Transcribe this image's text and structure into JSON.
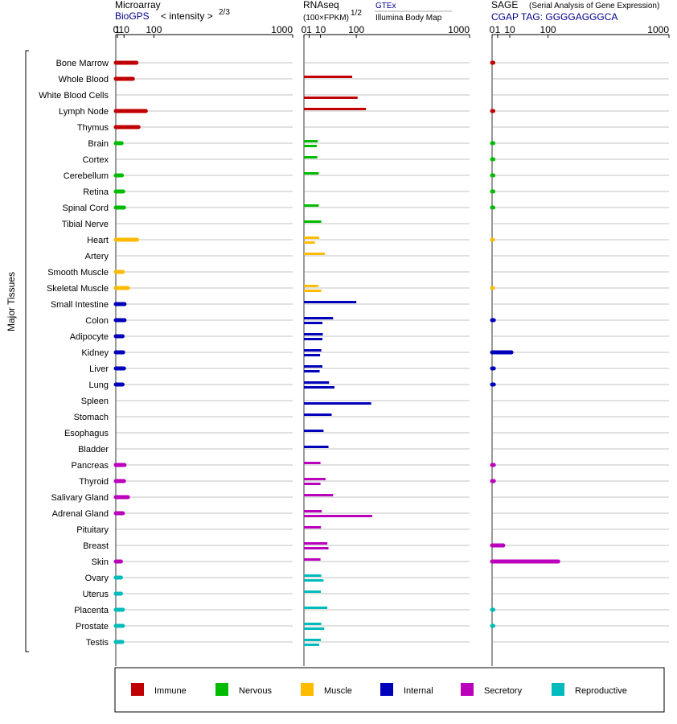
{
  "y_axis_label": "Major Tissues",
  "panels": {
    "microarray": {
      "title": "Microarray",
      "source": "BioGPS",
      "unit": "< intensity >",
      "unit_sup": "2/3"
    },
    "rnaseq": {
      "title": "RNAseq",
      "unit": "(100×FPKM)",
      "unit_sup": "1/2",
      "series1": "GTEx",
      "series2": "Illumina Body Map"
    },
    "sage": {
      "title": "SAGE",
      "subtitle": "(Serial Analysis of Gene Expression)",
      "tag": "CGAP TAG: GGGGAGGGCA"
    }
  },
  "legend": [
    {
      "name": "Immune",
      "color": "#c00000"
    },
    {
      "name": "Nervous",
      "color": "#00bb00"
    },
    {
      "name": "Muscle",
      "color": "#ffbb00"
    },
    {
      "name": "Internal",
      "color": "#0000bb"
    },
    {
      "name": "Secretory",
      "color": "#bb00bb"
    },
    {
      "name": "Reproductive",
      "color": "#00bbbb"
    }
  ],
  "chart_data": {
    "type": "bar",
    "scale": "power",
    "ticks": [
      0,
      1,
      10,
      100,
      1000
    ],
    "xlim": [
      0,
      1000
    ],
    "categories": [
      "Bone Marrow",
      "Whole Blood",
      "White Blood Cells",
      "Lymph Node",
      "Thymus",
      "Brain",
      "Cortex",
      "Cerebellum",
      "Retina",
      "Spinal Cord",
      "Tibial Nerve",
      "Heart",
      "Artery",
      "Smooth Muscle",
      "Skeletal Muscle",
      "Small Intestine",
      "Colon",
      "Adipocyte",
      "Kidney",
      "Liver",
      "Lung",
      "Spleen",
      "Stomach",
      "Esophagus",
      "Bladder",
      "Pancreas",
      "Thyroid",
      "Salivary Gland",
      "Adrenal Gland",
      "Pituitary",
      "Breast",
      "Skin",
      "Ovary",
      "Uterus",
      "Placenta",
      "Prostate",
      "Testis"
    ],
    "groups": [
      "Immune",
      "Immune",
      "Immune",
      "Immune",
      "Immune",
      "Nervous",
      "Nervous",
      "Nervous",
      "Nervous",
      "Nervous",
      "Nervous",
      "Muscle",
      "Muscle",
      "Muscle",
      "Muscle",
      "Internal",
      "Internal",
      "Internal",
      "Internal",
      "Internal",
      "Internal",
      "Internal",
      "Internal",
      "Internal",
      "Internal",
      "Secretory",
      "Secretory",
      "Secretory",
      "Secretory",
      "Secretory",
      "Secretory",
      "Secretory",
      "Reproductive",
      "Reproductive",
      "Reproductive",
      "Reproductive",
      "Reproductive"
    ],
    "microarray": [
      40,
      30,
      null,
      70,
      46,
      6,
      null,
      6.5,
      8.6,
      10,
      null,
      42,
      null,
      8,
      18,
      11,
      11,
      7.5,
      8.5,
      10,
      7.5,
      null,
      null,
      null,
      null,
      11,
      10,
      18,
      8,
      null,
      null,
      5,
      5,
      5,
      8,
      8,
      7
    ],
    "rnaseq_gtex": [
      null,
      85,
      null,
      140,
      null,
      7,
      6.5,
      8,
      null,
      8,
      11,
      8.5,
      16,
      null,
      7.5,
      100,
      31,
      13,
      11,
      12.5,
      23,
      null,
      28,
      14,
      22,
      10,
      17,
      31,
      11.5,
      10.5,
      20,
      10,
      11,
      10.5,
      20,
      11,
      10.5
    ],
    "rnaseq_ibm": [
      null,
      null,
      105,
      null,
      null,
      6,
      null,
      null,
      null,
      null,
      null,
      4.5,
      null,
      null,
      11,
      null,
      12.5,
      12.5,
      9.5,
      9,
      34,
      165,
      null,
      null,
      null,
      null,
      10,
      null,
      170,
      null,
      22,
      null,
      14,
      null,
      null,
      15,
      8.5
    ],
    "sage": [
      0.05,
      null,
      null,
      0.05,
      null,
      0.05,
      0.05,
      0.05,
      0.05,
      0.05,
      null,
      0.01,
      null,
      null,
      0.01,
      null,
      0.1,
      null,
      12,
      0.1,
      0.1,
      null,
      null,
      null,
      null,
      0.1,
      0.1,
      null,
      null,
      null,
      4,
      140,
      null,
      null,
      0.05,
      0.05,
      null
    ]
  }
}
